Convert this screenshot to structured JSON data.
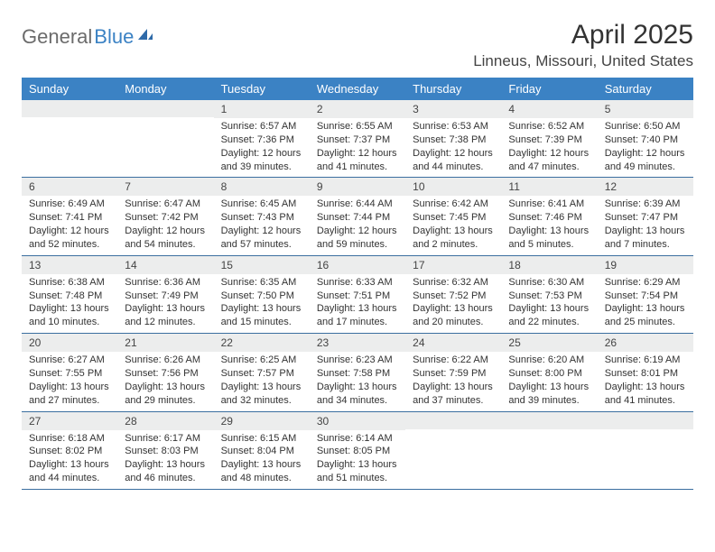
{
  "brand": {
    "part1": "General",
    "part2": "Blue"
  },
  "title": "April 2025",
  "location": "Linneus, Missouri, United States",
  "colors": {
    "header_bg": "#3b82c4",
    "daynum_bg": "#eceded",
    "rule": "#3b6fa0",
    "text": "#333333",
    "logo_gray": "#6b6b6b",
    "logo_blue": "#3b82c4"
  },
  "day_names": [
    "Sunday",
    "Monday",
    "Tuesday",
    "Wednesday",
    "Thursday",
    "Friday",
    "Saturday"
  ],
  "first_weekday": 2,
  "days": [
    {
      "n": 1,
      "sunrise": "6:57 AM",
      "sunset": "7:36 PM",
      "daylight": "12 hours and 39 minutes."
    },
    {
      "n": 2,
      "sunrise": "6:55 AM",
      "sunset": "7:37 PM",
      "daylight": "12 hours and 41 minutes."
    },
    {
      "n": 3,
      "sunrise": "6:53 AM",
      "sunset": "7:38 PM",
      "daylight": "12 hours and 44 minutes."
    },
    {
      "n": 4,
      "sunrise": "6:52 AM",
      "sunset": "7:39 PM",
      "daylight": "12 hours and 47 minutes."
    },
    {
      "n": 5,
      "sunrise": "6:50 AM",
      "sunset": "7:40 PM",
      "daylight": "12 hours and 49 minutes."
    },
    {
      "n": 6,
      "sunrise": "6:49 AM",
      "sunset": "7:41 PM",
      "daylight": "12 hours and 52 minutes."
    },
    {
      "n": 7,
      "sunrise": "6:47 AM",
      "sunset": "7:42 PM",
      "daylight": "12 hours and 54 minutes."
    },
    {
      "n": 8,
      "sunrise": "6:45 AM",
      "sunset": "7:43 PM",
      "daylight": "12 hours and 57 minutes."
    },
    {
      "n": 9,
      "sunrise": "6:44 AM",
      "sunset": "7:44 PM",
      "daylight": "12 hours and 59 minutes."
    },
    {
      "n": 10,
      "sunrise": "6:42 AM",
      "sunset": "7:45 PM",
      "daylight": "13 hours and 2 minutes."
    },
    {
      "n": 11,
      "sunrise": "6:41 AM",
      "sunset": "7:46 PM",
      "daylight": "13 hours and 5 minutes."
    },
    {
      "n": 12,
      "sunrise": "6:39 AM",
      "sunset": "7:47 PM",
      "daylight": "13 hours and 7 minutes."
    },
    {
      "n": 13,
      "sunrise": "6:38 AM",
      "sunset": "7:48 PM",
      "daylight": "13 hours and 10 minutes."
    },
    {
      "n": 14,
      "sunrise": "6:36 AM",
      "sunset": "7:49 PM",
      "daylight": "13 hours and 12 minutes."
    },
    {
      "n": 15,
      "sunrise": "6:35 AM",
      "sunset": "7:50 PM",
      "daylight": "13 hours and 15 minutes."
    },
    {
      "n": 16,
      "sunrise": "6:33 AM",
      "sunset": "7:51 PM",
      "daylight": "13 hours and 17 minutes."
    },
    {
      "n": 17,
      "sunrise": "6:32 AM",
      "sunset": "7:52 PM",
      "daylight": "13 hours and 20 minutes."
    },
    {
      "n": 18,
      "sunrise": "6:30 AM",
      "sunset": "7:53 PM",
      "daylight": "13 hours and 22 minutes."
    },
    {
      "n": 19,
      "sunrise": "6:29 AM",
      "sunset": "7:54 PM",
      "daylight": "13 hours and 25 minutes."
    },
    {
      "n": 20,
      "sunrise": "6:27 AM",
      "sunset": "7:55 PM",
      "daylight": "13 hours and 27 minutes."
    },
    {
      "n": 21,
      "sunrise": "6:26 AM",
      "sunset": "7:56 PM",
      "daylight": "13 hours and 29 minutes."
    },
    {
      "n": 22,
      "sunrise": "6:25 AM",
      "sunset": "7:57 PM",
      "daylight": "13 hours and 32 minutes."
    },
    {
      "n": 23,
      "sunrise": "6:23 AM",
      "sunset": "7:58 PM",
      "daylight": "13 hours and 34 minutes."
    },
    {
      "n": 24,
      "sunrise": "6:22 AM",
      "sunset": "7:59 PM",
      "daylight": "13 hours and 37 minutes."
    },
    {
      "n": 25,
      "sunrise": "6:20 AM",
      "sunset": "8:00 PM",
      "daylight": "13 hours and 39 minutes."
    },
    {
      "n": 26,
      "sunrise": "6:19 AM",
      "sunset": "8:01 PM",
      "daylight": "13 hours and 41 minutes."
    },
    {
      "n": 27,
      "sunrise": "6:18 AM",
      "sunset": "8:02 PM",
      "daylight": "13 hours and 44 minutes."
    },
    {
      "n": 28,
      "sunrise": "6:17 AM",
      "sunset": "8:03 PM",
      "daylight": "13 hours and 46 minutes."
    },
    {
      "n": 29,
      "sunrise": "6:15 AM",
      "sunset": "8:04 PM",
      "daylight": "13 hours and 48 minutes."
    },
    {
      "n": 30,
      "sunrise": "6:14 AM",
      "sunset": "8:05 PM",
      "daylight": "13 hours and 51 minutes."
    }
  ],
  "labels": {
    "sunrise": "Sunrise:",
    "sunset": "Sunset:",
    "daylight": "Daylight:"
  }
}
